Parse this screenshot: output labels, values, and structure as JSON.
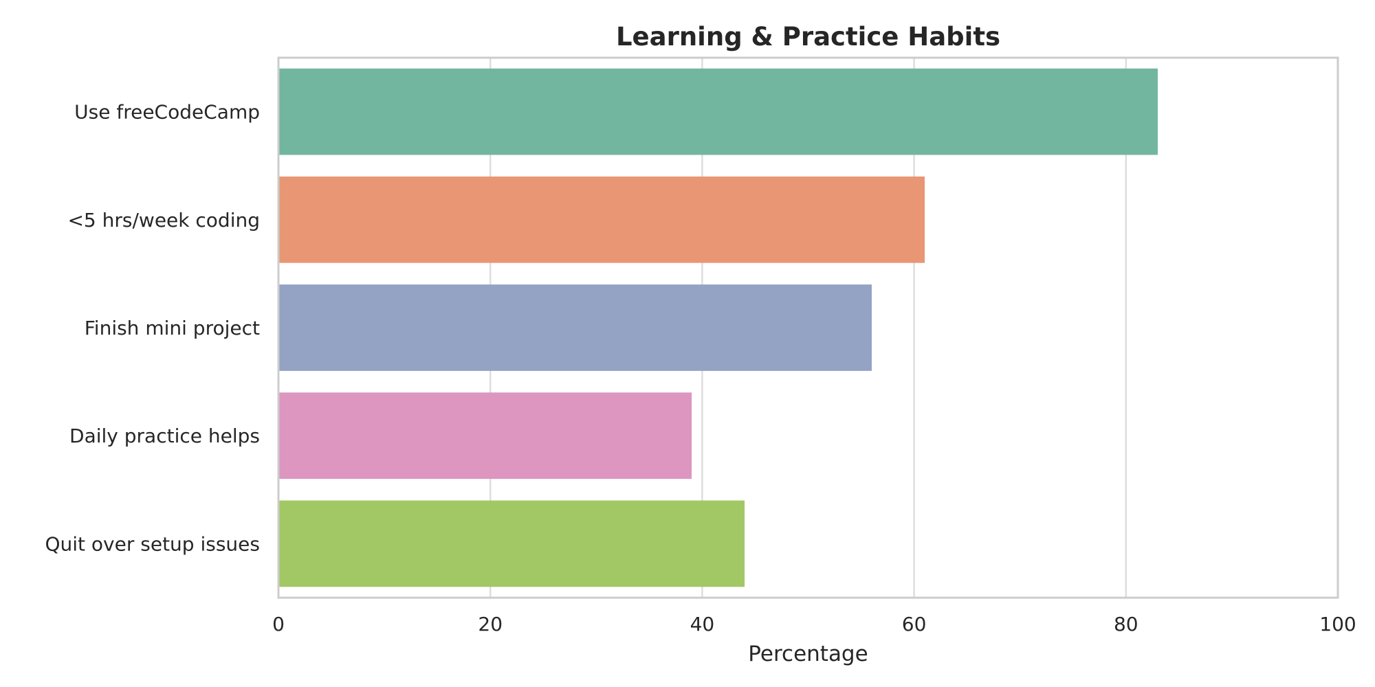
{
  "chart_data": {
    "type": "bar",
    "orientation": "horizontal",
    "title": "Learning & Practice Habits",
    "xlabel": "Percentage",
    "ylabel": "",
    "xlim": [
      0,
      100
    ],
    "xticks": [
      0,
      20,
      40,
      60,
      80,
      100
    ],
    "categories": [
      "Use freeCodeCamp",
      "<5 hrs/week coding",
      "Finish mini project",
      "Daily practice helps",
      "Quit over setup issues"
    ],
    "values": [
      83,
      61,
      56,
      39,
      44
    ],
    "colors": [
      "#73b6a0",
      "#e99674",
      "#94a3c4",
      "#dc96c0",
      "#a2c866"
    ],
    "grid": "vertical",
    "legend": "none"
  }
}
